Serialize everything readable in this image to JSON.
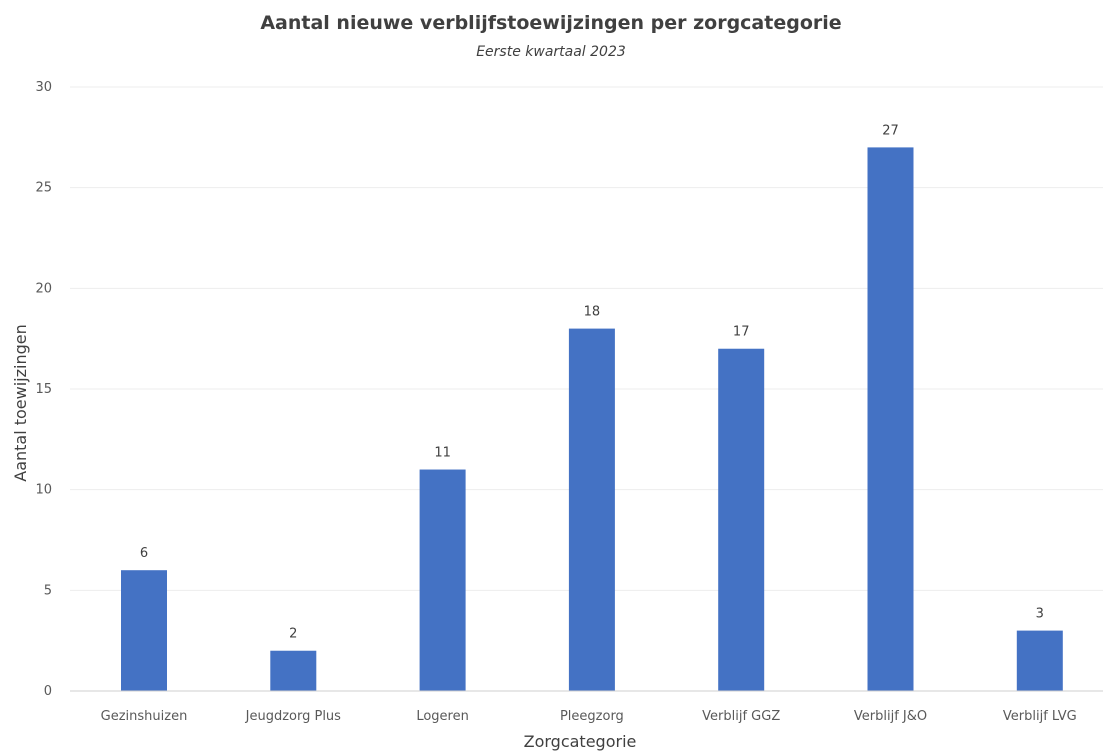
{
  "chart_data": {
    "type": "bar",
    "title": "Aantal nieuwe verblijfstoewijzingen per zorgcategorie",
    "subtitle": "Eerste kwartaal 2023",
    "xlabel": "Zorgcategorie",
    "ylabel": "Aantal toewijzingen",
    "categories": [
      "Gezinshuizen",
      "Jeugdzorg Plus",
      "Logeren",
      "Pleegzorg",
      "Verblijf GGZ",
      "Verblijf J&O",
      "Verblijf LVG"
    ],
    "values": [
      6,
      2,
      11,
      18,
      17,
      27,
      3
    ],
    "ylim": [
      0,
      30
    ],
    "yticks": [
      0,
      5,
      10,
      15,
      20,
      25,
      30
    ],
    "grid": true,
    "legend": "none",
    "bar_color": "#4472c4"
  }
}
